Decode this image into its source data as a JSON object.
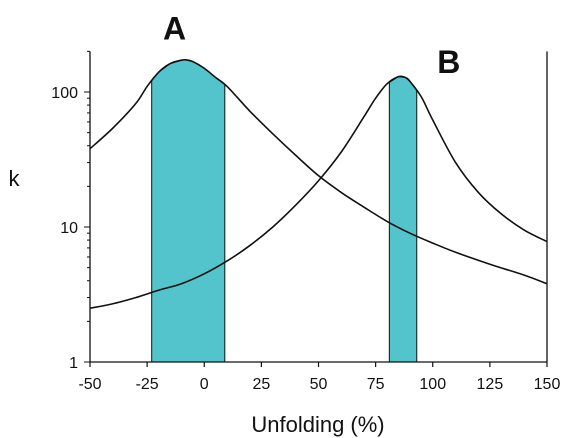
{
  "chart_data": {
    "type": "line",
    "title": "",
    "xlabel": "Unfolding (%)",
    "ylabel": "k",
    "xlim": [
      -50,
      150
    ],
    "ylim": [
      1,
      200
    ],
    "yscale": "log",
    "grid": false,
    "x_ticks": [
      -50,
      -25,
      0,
      25,
      50,
      75,
      100,
      125,
      150
    ],
    "x_tick_labels": [
      "-50",
      "-25",
      "0",
      "25",
      "50",
      "75",
      "100",
      "125",
      "150"
    ],
    "y_ticks": [
      1,
      10,
      100
    ],
    "y_tick_labels": [
      "1",
      "10",
      "100"
    ],
    "series": [
      {
        "name": "A",
        "x": [
          -50,
          -40,
          -30,
          -25,
          -20,
          -15,
          -10,
          -8,
          -5,
          0,
          5,
          10,
          20,
          30,
          40,
          50,
          60,
          70,
          80,
          90,
          100,
          110,
          125,
          140,
          150
        ],
        "y": [
          38,
          54,
          82,
          110,
          140,
          162,
          172,
          173,
          168,
          150,
          128,
          110,
          72,
          49,
          34,
          24,
          18,
          14,
          11,
          9,
          7.6,
          6.5,
          5.3,
          4.4,
          3.8
        ]
      },
      {
        "name": "B",
        "x": [
          -50,
          -40,
          -30,
          -20,
          -10,
          0,
          10,
          20,
          30,
          40,
          50,
          60,
          70,
          75,
          80,
          85,
          88,
          90,
          95,
          100,
          110,
          120,
          130,
          140,
          150
        ],
        "y": [
          2.5,
          2.7,
          3.0,
          3.4,
          3.8,
          4.5,
          5.6,
          7.3,
          10,
          14.5,
          22,
          36,
          66,
          90,
          115,
          130,
          128,
          120,
          92,
          62,
          30,
          18,
          12.5,
          9.5,
          7.8
        ]
      }
    ],
    "shaded_regions": [
      {
        "series": "A",
        "x_start": -23,
        "x_end": 9,
        "color": "#54c4cc"
      },
      {
        "series": "B",
        "x_start": 81,
        "x_end": 93,
        "color": "#54c4cc"
      }
    ],
    "annotations": [
      {
        "text": "A",
        "x": -13,
        "y": 300
      },
      {
        "text": "B",
        "x": 107,
        "y": 170
      }
    ],
    "colors": {
      "line": "#111111",
      "fill": "#54c4cc"
    }
  }
}
